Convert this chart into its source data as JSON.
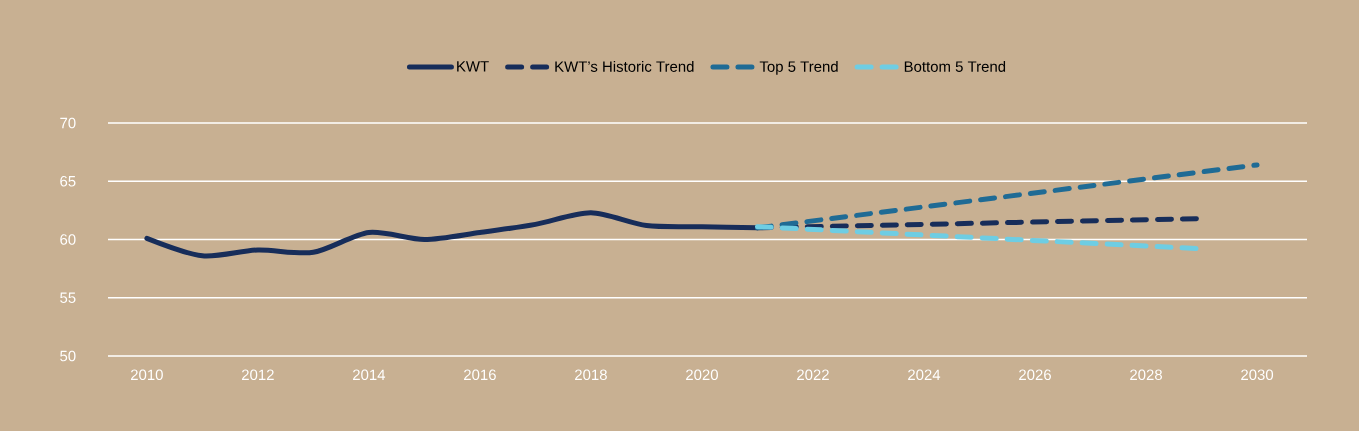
{
  "chart_data": {
    "type": "line",
    "xlim": [
      2009.3,
      2030.9
    ],
    "ylim": [
      50,
      70
    ],
    "xticks": [
      2010,
      2012,
      2014,
      2016,
      2018,
      2020,
      2022,
      2024,
      2026,
      2028,
      2030
    ],
    "yticks": [
      50,
      55,
      60,
      65,
      70
    ],
    "grid": "y",
    "legend": "top",
    "series": [
      {
        "name": "KWT",
        "color": "#172d5a",
        "line_style": "solid",
        "x": [
          2010,
          2011,
          2012,
          2013,
          2014,
          2015,
          2016,
          2017,
          2018,
          2019,
          2020,
          2021
        ],
        "values": [
          60.1,
          58.6,
          59.1,
          58.9,
          60.6,
          60.0,
          60.6,
          61.3,
          62.3,
          61.2,
          61.1,
          61.0
        ]
      },
      {
        "name": "KWT’s Historic Trend",
        "color": "#172d5a",
        "line_style": "dashed",
        "x": [
          2021,
          2029
        ],
        "values": [
          61.0,
          61.8
        ]
      },
      {
        "name": "Top 5 Trend",
        "color": "#1f6b95",
        "line_style": "dashed",
        "x": [
          2021,
          2030
        ],
        "values": [
          61.0,
          66.4
        ]
      },
      {
        "name": "Bottom 5 Trend",
        "color": "#6ecde3",
        "line_style": "dashed",
        "x": [
          2021,
          2029
        ],
        "values": [
          61.1,
          59.2
        ]
      }
    ]
  }
}
